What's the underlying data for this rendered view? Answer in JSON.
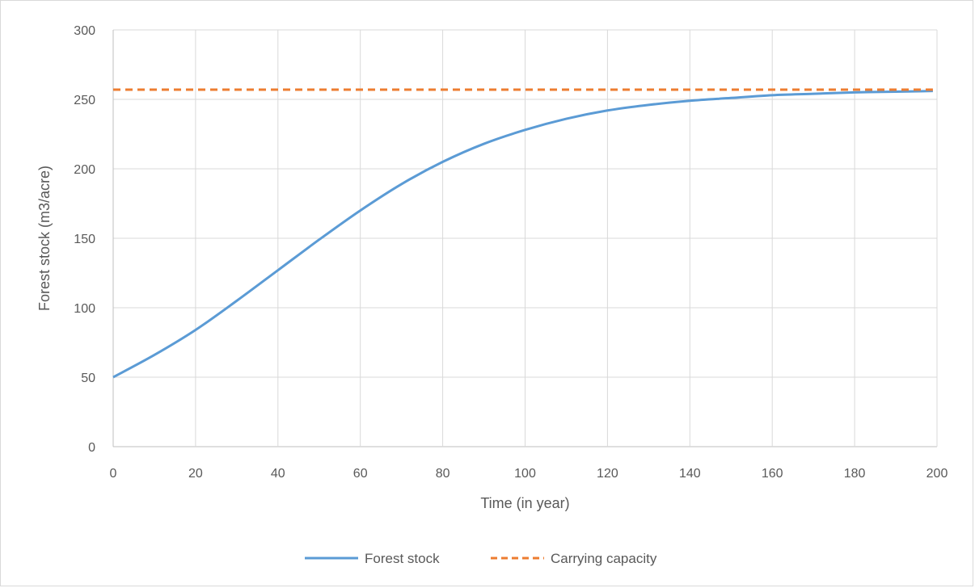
{
  "chart_data": {
    "type": "line",
    "title": "",
    "xlabel": "Time (in year)",
    "ylabel": "Forest stock (m3/acre)",
    "xlim": [
      0,
      200
    ],
    "ylim": [
      0,
      300
    ],
    "x_ticks": [
      0,
      20,
      40,
      60,
      80,
      100,
      120,
      140,
      160,
      180,
      200
    ],
    "y_ticks": [
      0,
      50,
      100,
      150,
      200,
      250,
      300
    ],
    "grid": true,
    "legend_position": "bottom",
    "x": [
      0,
      10,
      20,
      30,
      40,
      50,
      60,
      70,
      80,
      90,
      100,
      110,
      120,
      130,
      140,
      150,
      160,
      170,
      180,
      190,
      199
    ],
    "series": [
      {
        "name": "Forest stock",
        "style": "solid",
        "color": "#5b9bd5",
        "values": [
          50,
          66,
          84,
          105,
          127,
          149,
          170,
          189,
          205,
          218,
          228,
          236,
          242,
          246,
          249,
          251,
          253,
          254,
          255,
          255.5,
          256
        ]
      },
      {
        "name": "Carrying capacity",
        "style": "dashed",
        "color": "#ed7d31",
        "values": [
          257,
          257,
          257,
          257,
          257,
          257,
          257,
          257,
          257,
          257,
          257,
          257,
          257,
          257,
          257,
          257,
          257,
          257,
          257,
          257,
          257
        ]
      }
    ]
  }
}
